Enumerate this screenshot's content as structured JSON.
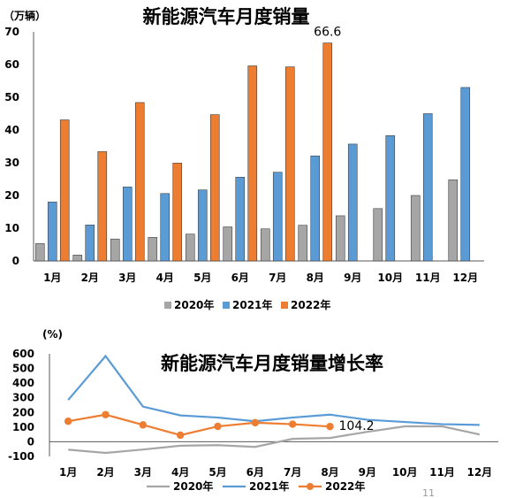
{
  "page_number": "11",
  "colors": {
    "c2020": "#a6a6a6",
    "c2021": "#5b9bd5",
    "c2022": "#ed7d31"
  },
  "chart_data": [
    {
      "type": "bar",
      "title": "新能源汽车月度销量",
      "unit_label": "（万辆）",
      "categories": [
        "1月",
        "2月",
        "3月",
        "4月",
        "5月",
        "6月",
        "7月",
        "8月",
        "9月",
        "10月",
        "11月",
        "12月"
      ],
      "ylim": [
        0,
        70
      ],
      "yticks": [
        0,
        10,
        20,
        30,
        40,
        50,
        60,
        70
      ],
      "legend_position": "bottom",
      "series": [
        {
          "name": "2020年",
          "color_key": "c2020",
          "values": [
            5.3,
            1.8,
            6.7,
            7.2,
            8.2,
            10.4,
            9.8,
            10.9,
            13.8,
            16.0,
            20.0,
            24.8
          ]
        },
        {
          "name": "2021年",
          "color_key": "c2021",
          "values": [
            18.0,
            11.0,
            22.6,
            20.6,
            21.7,
            25.6,
            27.1,
            32.1,
            35.7,
            38.3,
            45.0,
            53.0
          ]
        },
        {
          "name": "2022年",
          "color_key": "c2022",
          "values": [
            43.1,
            33.4,
            48.4,
            29.9,
            44.7,
            59.6,
            59.3,
            66.6,
            null,
            null,
            null,
            null
          ]
        }
      ],
      "data_labels": [
        {
          "series": 2,
          "index": 7,
          "text": "66.6"
        }
      ]
    },
    {
      "type": "line",
      "title": "新能源汽车月度销量增长率",
      "unit_label": "(%)",
      "categories": [
        "1月",
        "2月",
        "3月",
        "4月",
        "5月",
        "6月",
        "7月",
        "8月",
        "9月",
        "10月",
        "11月",
        "12月"
      ],
      "ylim": [
        -100,
        600
      ],
      "yticks": [
        -100,
        0,
        100,
        200,
        300,
        400,
        500,
        600
      ],
      "legend_position": "bottom",
      "series": [
        {
          "name": "2020年",
          "color_key": "c2020",
          "marker": false,
          "values": [
            -54,
            -76,
            -53,
            -27,
            -23,
            -35,
            20,
            26,
            68,
            105,
            105,
            50
          ]
        },
        {
          "name": "2021年",
          "color_key": "c2021",
          "marker": false,
          "values": [
            285,
            585,
            240,
            180,
            165,
            140,
            165,
            185,
            150,
            135,
            120,
            115
          ]
        },
        {
          "name": "2022年",
          "color_key": "c2022",
          "marker": true,
          "values": [
            140,
            185,
            115,
            45,
            105,
            130,
            120,
            104.2,
            null,
            null,
            null,
            null
          ]
        }
      ],
      "data_labels": [
        {
          "series": 2,
          "index": 7,
          "text": "104.2"
        }
      ]
    }
  ]
}
